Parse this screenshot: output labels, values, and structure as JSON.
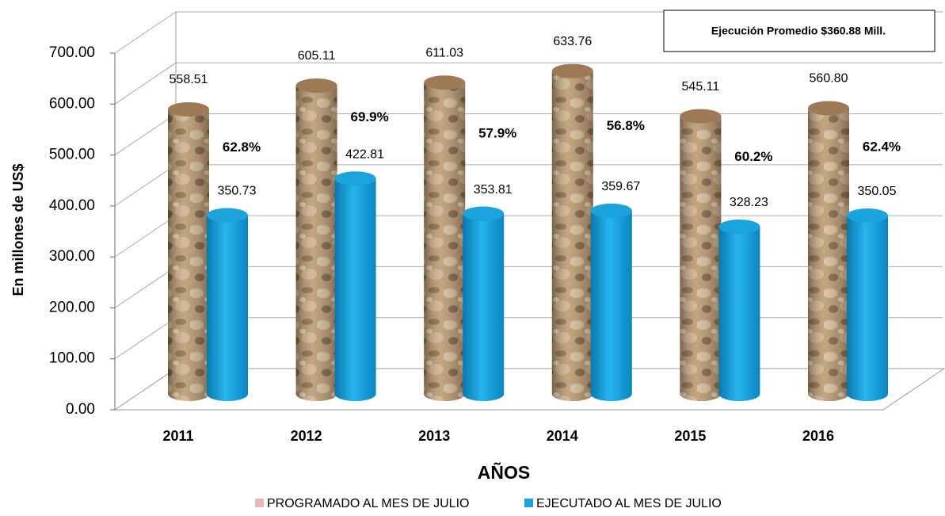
{
  "chart_data": {
    "type": "cylinder-bar",
    "y_axis_label": "En millones de US$",
    "x_axis_label": "AÑOS",
    "annotation_box": "Ejecución Promedio $360.88 Mill.",
    "categories": [
      "2011",
      "2012",
      "2013",
      "2014",
      "2015",
      "2016"
    ],
    "series": [
      {
        "name": "PROGRAMADO AL MES DE JULIO",
        "color": "#e6b8b7",
        "values": [
          558.51,
          605.11,
          611.03,
          633.76,
          545.11,
          560.8
        ],
        "value_labels": [
          "558.51",
          "605.11",
          "611.03",
          "633.76",
          "545.11",
          "560.80"
        ]
      },
      {
        "name": "EJECUTADO AL MES DE JULIO",
        "color": "#1aa3dc",
        "values": [
          350.73,
          422.81,
          353.81,
          359.67,
          328.23,
          350.05
        ],
        "value_labels": [
          "350.73",
          "422.81",
          "353.81",
          "359.67",
          "328.23",
          "350.05"
        ]
      }
    ],
    "annotations": [
      "62.8%",
      "69.9%",
      "57.9%",
      "56.8%",
      "60.2%",
      "62.4%"
    ],
    "ylim": [
      0,
      700
    ],
    "yticks": [
      {
        "value": 0,
        "label": "0.00"
      },
      {
        "value": 100,
        "label": "100.00"
      },
      {
        "value": 200,
        "label": "200.00"
      },
      {
        "value": 300,
        "label": "300.00"
      },
      {
        "value": 400,
        "label": "400.00"
      },
      {
        "value": 500,
        "label": "500.00"
      },
      {
        "value": 600,
        "label": "600.00"
      },
      {
        "value": 700,
        "label": "700.00"
      }
    ],
    "grid": true
  }
}
